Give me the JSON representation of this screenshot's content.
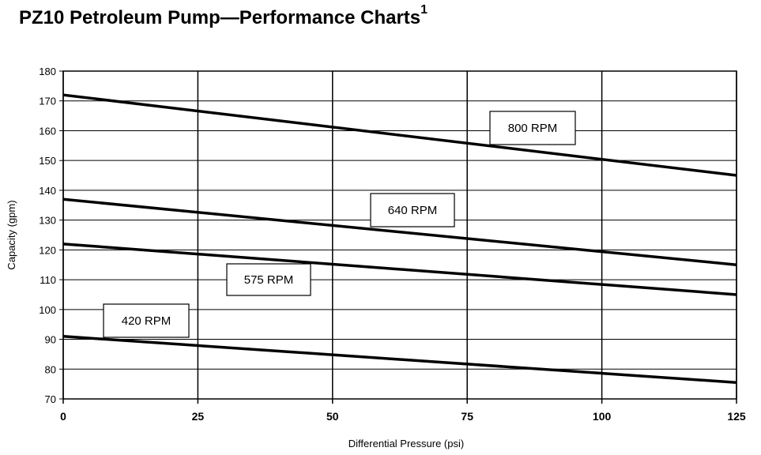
{
  "title": "PZ10 Petroleum Pump—Performance Charts",
  "title_footnote": "1",
  "chart_data": {
    "type": "line",
    "xlabel": "Differential Pressure (psi)",
    "ylabel": "Capacity (gpm)",
    "xlim": [
      0,
      125
    ],
    "ylim": [
      70,
      180
    ],
    "x_ticks": [
      0,
      25,
      50,
      75,
      100,
      125
    ],
    "y_ticks": [
      70,
      80,
      90,
      100,
      110,
      120,
      130,
      140,
      150,
      160,
      170,
      180
    ],
    "grid": true,
    "series": [
      {
        "name": "800 RPM",
        "x": [
          0,
          125
        ],
        "y": [
          172,
          145
        ]
      },
      {
        "name": "640 RPM",
        "x": [
          0,
          125
        ],
        "y": [
          137,
          115
        ]
      },
      {
        "name": "575 RPM",
        "x": [
          0,
          125
        ],
        "y": [
          122,
          105
        ]
      },
      {
        "name": "420 RPM",
        "x": [
          0,
          125
        ],
        "y": [
          91,
          75.5
        ]
      }
    ]
  }
}
